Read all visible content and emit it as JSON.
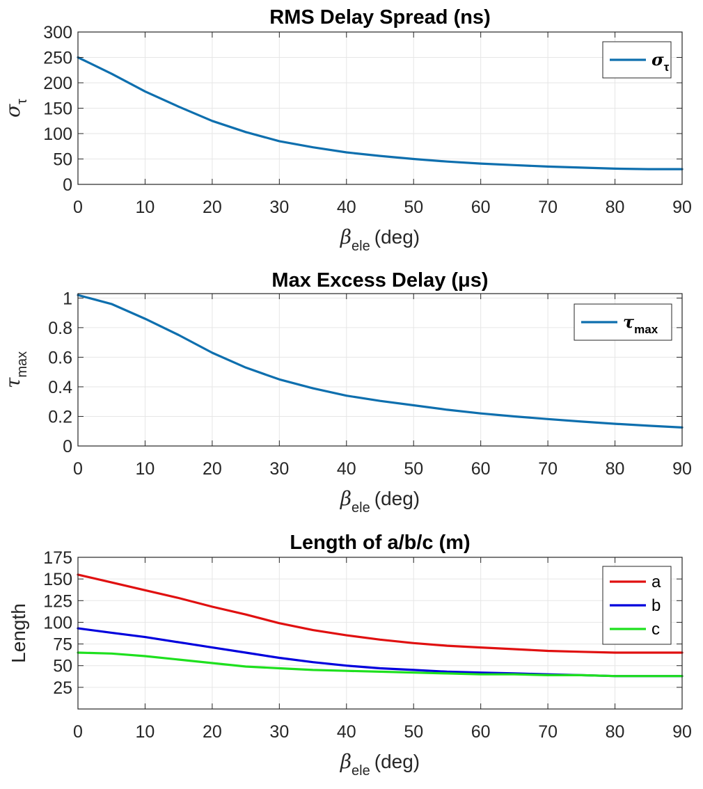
{
  "chart_data": [
    {
      "type": "line",
      "title": "RMS Delay Spread (ns)",
      "xlabel": {
        "symbol": "β",
        "subscript": "ele",
        "unit": "(deg)"
      },
      "ylabel": {
        "symbol": "σ",
        "subscript": "τ"
      },
      "xlim": [
        0,
        90
      ],
      "ylim": [
        0,
        300
      ],
      "xticks": [
        0,
        10,
        20,
        30,
        40,
        50,
        60,
        70,
        80,
        90
      ],
      "yticks": [
        0,
        50,
        100,
        150,
        200,
        250,
        300
      ],
      "grid": true,
      "legend_position": "top-right",
      "series": [
        {
          "name": {
            "symbol": "σ",
            "subscript": "τ"
          },
          "color": "#0E6FAE",
          "x": [
            0,
            5,
            10,
            15,
            20,
            25,
            30,
            35,
            40,
            45,
            50,
            55,
            60,
            65,
            70,
            75,
            80,
            85,
            90
          ],
          "y": [
            250,
            218,
            183,
            153,
            125,
            103,
            85,
            73,
            63,
            56,
            50,
            45,
            41,
            38,
            35,
            33,
            31,
            30,
            30
          ]
        }
      ]
    },
    {
      "type": "line",
      "title": "Max Excess Delay (μs)",
      "xlabel": {
        "symbol": "β",
        "subscript": "ele",
        "unit": "(deg)"
      },
      "ylabel": {
        "symbol": "τ",
        "subscript": "max"
      },
      "xlim": [
        0,
        90
      ],
      "ylim": [
        0,
        1.03
      ],
      "xticks": [
        0,
        10,
        20,
        30,
        40,
        50,
        60,
        70,
        80,
        90
      ],
      "yticks": [
        0,
        0.2,
        0.4,
        0.6,
        0.8,
        1
      ],
      "grid": true,
      "legend_position": "top-right",
      "series": [
        {
          "name": {
            "symbol": "τ",
            "subscript": "max"
          },
          "color": "#0E6FAE",
          "x": [
            0,
            5,
            10,
            15,
            20,
            25,
            30,
            35,
            40,
            45,
            50,
            55,
            60,
            65,
            70,
            75,
            80,
            85,
            90
          ],
          "y": [
            1.02,
            0.96,
            0.86,
            0.75,
            0.63,
            0.53,
            0.45,
            0.39,
            0.34,
            0.305,
            0.275,
            0.245,
            0.22,
            0.2,
            0.182,
            0.165,
            0.15,
            0.137,
            0.125
          ]
        }
      ]
    },
    {
      "type": "line",
      "title": "Length of a/b/c (m)",
      "xlabel": {
        "symbol": "β",
        "subscript": "ele",
        "unit": "(deg)"
      },
      "ylabel": "Length",
      "xlim": [
        0,
        90
      ],
      "ylim": [
        0,
        175
      ],
      "xticks": [
        0,
        10,
        20,
        30,
        40,
        50,
        60,
        70,
        80,
        90
      ],
      "yticks": [
        25,
        50,
        75,
        100,
        125,
        150,
        175
      ],
      "grid": true,
      "legend_position": "top-right",
      "series": [
        {
          "name": "a",
          "color": "#E01010",
          "x": [
            0,
            5,
            10,
            15,
            20,
            25,
            30,
            35,
            40,
            45,
            50,
            55,
            60,
            65,
            70,
            75,
            80,
            85,
            90
          ],
          "y": [
            155,
            146,
            137,
            128,
            118,
            109,
            99,
            91,
            85,
            80,
            76,
            73,
            71,
            69,
            67,
            66,
            65,
            65,
            65
          ]
        },
        {
          "name": "b",
          "color": "#0000DD",
          "x": [
            0,
            5,
            10,
            15,
            20,
            25,
            30,
            35,
            40,
            45,
            50,
            55,
            60,
            65,
            70,
            75,
            80,
            85,
            90
          ],
          "y": [
            93,
            88,
            83,
            77,
            71,
            65,
            59,
            54,
            50,
            47,
            45,
            43,
            42,
            41,
            40,
            39,
            38,
            38,
            38
          ]
        },
        {
          "name": "c",
          "color": "#1EE01E",
          "x": [
            0,
            5,
            10,
            15,
            20,
            25,
            30,
            35,
            40,
            45,
            50,
            55,
            60,
            65,
            70,
            75,
            80,
            85,
            90
          ],
          "y": [
            65,
            64,
            61,
            57,
            53,
            49,
            47,
            45,
            44,
            43,
            42,
            41,
            40,
            40,
            39,
            39,
            38,
            38,
            38
          ]
        }
      ]
    }
  ]
}
